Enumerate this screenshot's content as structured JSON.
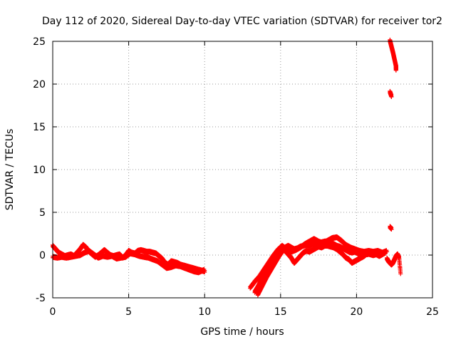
{
  "chart_data": {
    "type": "scatter",
    "title": "Day 112 of 2020, Sidereal Day-to-day VTEC variation (SDTVAR) for receiver tor2",
    "xlabel": "GPS time / hours",
    "ylabel": "SDTVAR / TECUs",
    "xlim": [
      0,
      25
    ],
    "ylim": [
      -5,
      25
    ],
    "xticks": [
      0,
      5,
      10,
      15,
      20,
      25
    ],
    "yticks": [
      -5,
      0,
      5,
      10,
      15,
      20,
      25
    ],
    "grid": true,
    "marker": "+",
    "color": "#ff0000",
    "series": [
      {
        "name": "SDTVAR",
        "segments": [
          [
            [
              0.0,
              1.0
            ],
            [
              0.2,
              0.6
            ],
            [
              0.4,
              0.2
            ],
            [
              0.6,
              0.0
            ],
            [
              0.8,
              -0.2
            ],
            [
              1.0,
              -0.1
            ],
            [
              1.2,
              0.0
            ],
            [
              1.4,
              -0.2
            ],
            [
              1.6,
              0.2
            ],
            [
              1.8,
              0.6
            ],
            [
              2.0,
              1.1
            ],
            [
              2.2,
              0.8
            ],
            [
              2.4,
              0.3
            ],
            [
              2.6,
              0.0
            ],
            [
              2.8,
              -0.3
            ],
            [
              3.0,
              -0.1
            ],
            [
              3.2,
              0.2
            ],
            [
              3.4,
              0.5
            ],
            [
              3.6,
              0.2
            ],
            [
              3.8,
              -0.1
            ],
            [
              4.0,
              -0.2
            ],
            [
              4.2,
              -0.1
            ],
            [
              4.4,
              0.0
            ],
            [
              4.6,
              -0.4
            ],
            [
              4.8,
              -0.1
            ],
            [
              5.0,
              0.4
            ],
            [
              5.2,
              0.2
            ],
            [
              5.4,
              0.1
            ],
            [
              5.6,
              0.4
            ],
            [
              5.8,
              0.5
            ],
            [
              6.0,
              0.4
            ],
            [
              6.2,
              0.3
            ],
            [
              6.4,
              0.3
            ],
            [
              6.6,
              0.2
            ],
            [
              6.8,
              0.1
            ],
            [
              7.0,
              -0.2
            ],
            [
              7.2,
              -0.5
            ],
            [
              7.4,
              -1.0
            ],
            [
              7.6,
              -1.2
            ],
            [
              7.8,
              -0.8
            ],
            [
              8.0,
              -0.9
            ],
            [
              8.2,
              -1.0
            ],
            [
              8.4,
              -1.2
            ],
            [
              8.6,
              -1.3
            ],
            [
              8.8,
              -1.4
            ],
            [
              9.0,
              -1.5
            ],
            [
              9.2,
              -1.6
            ],
            [
              9.4,
              -1.7
            ],
            [
              9.6,
              -1.8
            ],
            [
              9.8,
              -1.9
            ],
            [
              10.0,
              -2.0
            ]
          ],
          [
            [
              0.0,
              -0.3
            ],
            [
              0.3,
              -0.4
            ],
            [
              0.6,
              -0.3
            ],
            [
              0.9,
              -0.4
            ],
            [
              1.2,
              -0.3
            ],
            [
              1.5,
              -0.2
            ],
            [
              1.8,
              -0.1
            ],
            [
              2.1,
              0.2
            ],
            [
              2.4,
              0.4
            ],
            [
              2.7,
              0.0
            ],
            [
              3.0,
              -0.4
            ],
            [
              3.3,
              -0.2
            ],
            [
              3.6,
              -0.3
            ],
            [
              3.9,
              -0.2
            ],
            [
              4.2,
              -0.5
            ],
            [
              4.5,
              -0.4
            ],
            [
              4.8,
              -0.3
            ],
            [
              5.1,
              0.1
            ],
            [
              5.4,
              0.0
            ],
            [
              5.7,
              -0.2
            ],
            [
              6.0,
              -0.3
            ],
            [
              6.3,
              -0.4
            ],
            [
              6.6,
              -0.6
            ],
            [
              6.9,
              -0.8
            ],
            [
              7.2,
              -1.2
            ],
            [
              7.5,
              -1.6
            ],
            [
              7.8,
              -1.5
            ],
            [
              8.1,
              -1.3
            ],
            [
              8.4,
              -1.4
            ],
            [
              8.7,
              -1.6
            ],
            [
              9.0,
              -1.8
            ],
            [
              9.3,
              -2.0
            ],
            [
              9.6,
              -2.1
            ],
            [
              10.0,
              -1.8
            ]
          ],
          [
            [
              13.0,
              -3.9
            ],
            [
              13.3,
              -3.2
            ],
            [
              13.6,
              -2.6
            ],
            [
              13.9,
              -1.8
            ],
            [
              14.2,
              -1.0
            ],
            [
              14.5,
              -0.2
            ],
            [
              14.8,
              0.5
            ],
            [
              15.1,
              1.0
            ],
            [
              15.4,
              0.6
            ],
            [
              15.7,
              0.3
            ],
            [
              16.0,
              0.5
            ],
            [
              16.3,
              0.8
            ],
            [
              16.6,
              1.2
            ],
            [
              16.9,
              1.5
            ],
            [
              17.2,
              1.8
            ],
            [
              17.5,
              1.5
            ],
            [
              17.8,
              1.3
            ],
            [
              18.1,
              1.6
            ],
            [
              18.4,
              1.9
            ],
            [
              18.7,
              2.0
            ],
            [
              19.0,
              1.6
            ],
            [
              19.3,
              1.1
            ],
            [
              19.6,
              0.8
            ],
            [
              19.9,
              0.6
            ],
            [
              20.2,
              0.4
            ],
            [
              20.5,
              0.3
            ],
            [
              20.8,
              0.4
            ],
            [
              21.1,
              0.3
            ],
            [
              21.4,
              0.4
            ],
            [
              21.7,
              0.2
            ],
            [
              22.0,
              0.4
            ]
          ],
          [
            [
              13.3,
              -4.4
            ],
            [
              13.5,
              -3.8
            ],
            [
              13.7,
              -3.1
            ],
            [
              13.9,
              -2.5
            ],
            [
              14.1,
              -1.9
            ],
            [
              14.3,
              -1.3
            ],
            [
              14.5,
              -0.8
            ],
            [
              14.7,
              -0.2
            ],
            [
              14.9,
              0.3
            ],
            [
              15.1,
              0.7
            ],
            [
              15.3,
              0.4
            ],
            [
              15.5,
              0.0
            ],
            [
              15.7,
              -0.4
            ],
            [
              15.9,
              -1.0
            ],
            [
              16.1,
              -0.6
            ],
            [
              16.3,
              -0.2
            ],
            [
              16.5,
              0.2
            ],
            [
              16.7,
              0.4
            ],
            [
              16.9,
              0.3
            ],
            [
              17.1,
              0.5
            ],
            [
              17.3,
              0.7
            ],
            [
              17.5,
              0.9
            ],
            [
              17.7,
              0.8
            ],
            [
              17.9,
              1.0
            ],
            [
              18.1,
              1.0
            ],
            [
              18.3,
              0.9
            ],
            [
              18.5,
              0.8
            ],
            [
              18.7,
              0.6
            ],
            [
              18.9,
              0.3
            ],
            [
              19.1,
              0.0
            ],
            [
              19.3,
              -0.4
            ],
            [
              19.5,
              -0.6
            ],
            [
              19.7,
              -1.0
            ],
            [
              19.9,
              -0.8
            ],
            [
              20.1,
              -0.6
            ],
            [
              20.3,
              -0.4
            ],
            [
              20.5,
              -0.2
            ],
            [
              20.7,
              0.1
            ],
            [
              20.9,
              0.0
            ],
            [
              21.1,
              -0.1
            ],
            [
              21.3,
              0.0
            ],
            [
              21.5,
              -0.2
            ],
            [
              21.7,
              0.0
            ],
            [
              21.9,
              0.2
            ]
          ],
          [
            [
              13.5,
              -4.7
            ],
            [
              13.7,
              -4.0
            ],
            [
              13.9,
              -3.3
            ],
            [
              14.1,
              -2.6
            ],
            [
              14.3,
              -2.0
            ],
            [
              14.5,
              -1.4
            ],
            [
              14.7,
              -0.8
            ],
            [
              14.9,
              -0.2
            ],
            [
              15.1,
              0.3
            ],
            [
              15.3,
              0.8
            ],
            [
              15.5,
              1.0
            ],
            [
              15.7,
              0.8
            ],
            [
              15.9,
              0.6
            ],
            [
              16.1,
              0.7
            ],
            [
              16.3,
              0.9
            ],
            [
              16.5,
              1.0
            ],
            [
              16.7,
              1.1
            ],
            [
              16.9,
              1.0
            ],
            [
              17.1,
              1.2
            ],
            [
              17.3,
              1.3
            ],
            [
              17.5,
              1.2
            ],
            [
              17.7,
              1.4
            ],
            [
              17.9,
              1.5
            ],
            [
              18.1,
              1.5
            ],
            [
              18.3,
              1.4
            ],
            [
              18.5,
              1.2
            ],
            [
              18.7,
              1.0
            ],
            [
              18.9,
              0.9
            ],
            [
              19.1,
              0.7
            ],
            [
              19.3,
              0.5
            ],
            [
              19.5,
              0.3
            ],
            [
              19.7,
              0.2
            ],
            [
              19.9,
              0.3
            ],
            [
              20.1,
              0.1
            ],
            [
              20.3,
              0.0
            ],
            [
              20.5,
              0.1
            ],
            [
              20.7,
              0.0
            ],
            [
              20.9,
              0.1
            ],
            [
              21.1,
              0.2
            ],
            [
              21.3,
              0.1
            ],
            [
              21.5,
              0.0
            ],
            [
              21.7,
              0.1
            ]
          ],
          [
            [
              22.2,
              3.2
            ],
            [
              22.3,
              3.0
            ]
          ],
          [
            [
              22.2,
              19.0
            ],
            [
              22.3,
              18.5
            ]
          ],
          [
            [
              22.2,
              25.0
            ],
            [
              22.3,
              24.3
            ],
            [
              22.4,
              23.6
            ],
            [
              22.5,
              22.8
            ],
            [
              22.6,
              22.0
            ],
            [
              22.6,
              21.6
            ]
          ],
          [
            [
              22.0,
              -0.5
            ],
            [
              22.1,
              -0.8
            ],
            [
              22.2,
              -1.0
            ],
            [
              22.3,
              -1.2
            ],
            [
              22.4,
              -1.0
            ],
            [
              22.5,
              -0.6
            ],
            [
              22.6,
              -0.2
            ],
            [
              22.7,
              0.0
            ],
            [
              22.8,
              -0.4
            ],
            [
              22.9,
              -2.2
            ]
          ]
        ]
      }
    ]
  }
}
